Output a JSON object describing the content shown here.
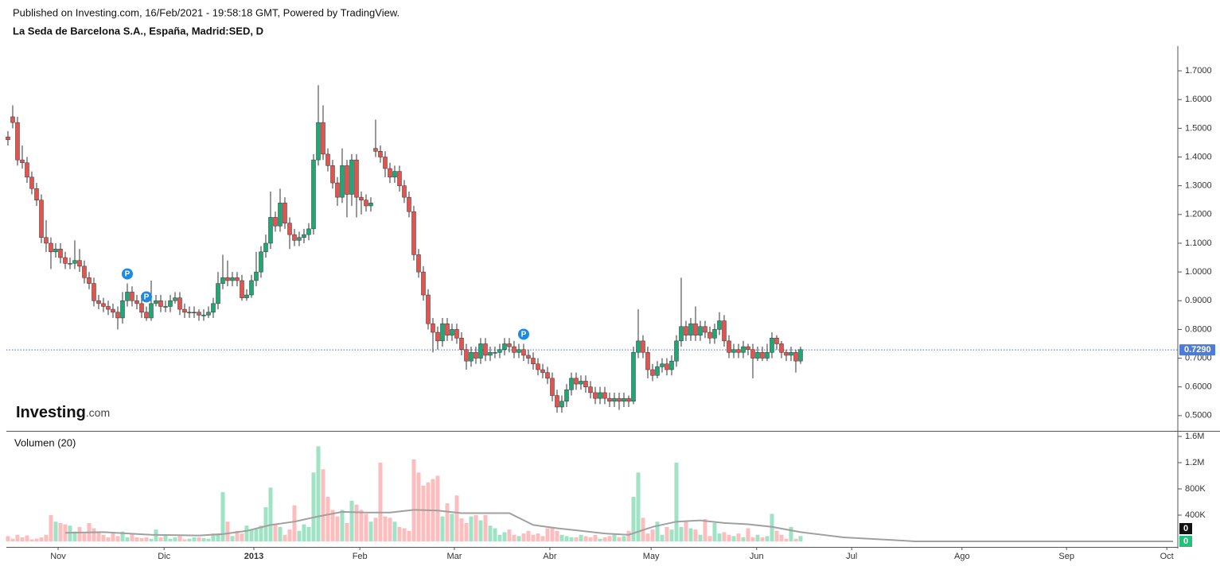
{
  "chart_data": {
    "type": "candlestick",
    "subtitle": "Published on Investing.com, 16/Feb/2021 - 19:58:18 GMT, Powered by TradingView.",
    "title": "La Seda de Barcelona S.A., España, Madrid:SED, D",
    "logo": {
      "brand": "Investing",
      "suffix": ".com"
    },
    "up_color": "#1fa774",
    "down_color": "#e5534f",
    "xlim": [
      -0.33,
      244.67
    ],
    "xticks": [
      {
        "value": 10.5,
        "label": "Nov"
      },
      {
        "value": 32.7,
        "label": "Dic"
      },
      {
        "value": 51.5,
        "label": "2013"
      },
      {
        "value": 73.7,
        "label": "Feb"
      },
      {
        "value": 93.5,
        "label": "Mar"
      },
      {
        "value": 113.5,
        "label": "Abr"
      },
      {
        "value": 134.7,
        "label": "May"
      },
      {
        "value": 156.8,
        "label": "Jun"
      },
      {
        "value": 176.7,
        "label": "Jul"
      },
      {
        "value": 199.8,
        "label": "Ago"
      },
      {
        "value": 221.7,
        "label": "Sep"
      },
      {
        "value": 242.7,
        "label": "Oct"
      }
    ],
    "ylim": [
      0.447,
      1.786
    ],
    "yticks": [
      {
        "value": 0.5,
        "label": "0.5000"
      },
      {
        "value": 0.6,
        "label": "0.6000"
      },
      {
        "value": 0.7,
        "label": "0.7000"
      },
      {
        "value": 0.8,
        "label": "0.8000"
      },
      {
        "value": 0.9,
        "label": "0.9000"
      },
      {
        "value": 1.0,
        "label": "1.0000"
      },
      {
        "value": 1.1,
        "label": "1.1000"
      },
      {
        "value": 1.2,
        "label": "1.2000"
      },
      {
        "value": 1.3,
        "label": "1.3000"
      },
      {
        "value": 1.4,
        "label": "1.4000"
      },
      {
        "value": 1.5,
        "label": "1.5000"
      },
      {
        "value": 1.6,
        "label": "1.6000"
      },
      {
        "value": 1.7,
        "label": "1.7000"
      }
    ],
    "last_price": {
      "value": 0.729,
      "label": "0.7290"
    },
    "events": [
      {
        "bar": 25,
        "label": "P"
      },
      {
        "bar": 29,
        "label": "P"
      },
      {
        "bar": 108,
        "label": "P"
      }
    ],
    "open": [
      1.47,
      1.54,
      1.52,
      1.39,
      1.38,
      1.33,
      1.29,
      1.25,
      1.12,
      1.1,
      1.07,
      1.08,
      1.05,
      1.03,
      1.03,
      1.04,
      1.02,
      0.98,
      0.96,
      0.9,
      0.89,
      0.88,
      0.87,
      0.86,
      0.84,
      0.9,
      0.93,
      0.9,
      0.89,
      0.86,
      0.84,
      0.89,
      0.9,
      0.88,
      0.88,
      0.9,
      0.91,
      0.87,
      0.86,
      0.86,
      0.86,
      0.85,
      0.85,
      0.86,
      0.89,
      0.96,
      0.98,
      0.97,
      0.98,
      0.97,
      0.91,
      0.92,
      0.97,
      1.0,
      1.07,
      1.1,
      1.19,
      1.16,
      1.24,
      1.17,
      1.13,
      1.11,
      1.12,
      1.13,
      1.15,
      1.39,
      1.52,
      1.41,
      1.37,
      1.31,
      1.26,
      1.37,
      1.27,
      1.39,
      1.26,
      1.25,
      1.23,
      1.43,
      1.42,
      1.4,
      1.36,
      1.33,
      1.35,
      1.3,
      1.26,
      1.21,
      1.06,
      1.0,
      0.92,
      0.82,
      0.79,
      0.76,
      0.82,
      0.78,
      0.8,
      0.77,
      0.73,
      0.69,
      0.72,
      0.7,
      0.75,
      0.71,
      0.72,
      0.72,
      0.73,
      0.75,
      0.74,
      0.72,
      0.73,
      0.71,
      0.7,
      0.68,
      0.66,
      0.65,
      0.63,
      0.57,
      0.53,
      0.55,
      0.59,
      0.63,
      0.61,
      0.62,
      0.6,
      0.58,
      0.56,
      0.58,
      0.56,
      0.55,
      0.56,
      0.55,
      0.56,
      0.55,
      0.72,
      0.76,
      0.72,
      0.66,
      0.64,
      0.67,
      0.68,
      0.66,
      0.69,
      0.76,
      0.81,
      0.78,
      0.82,
      0.78,
      0.81,
      0.79,
      0.77,
      0.8,
      0.83,
      0.76,
      0.72,
      0.73,
      0.72,
      0.74,
      0.73,
      0.7,
      0.72,
      0.7,
      0.72,
      0.77,
      0.75,
      0.72,
      0.71,
      0.72,
      0.69
    ],
    "high": [
      1.49,
      1.58,
      1.54,
      1.44,
      1.4,
      1.35,
      1.31,
      1.27,
      1.18,
      1.12,
      1.1,
      1.1,
      1.07,
      1.05,
      1.11,
      1.08,
      1.04,
      1.0,
      0.98,
      0.92,
      0.91,
      0.9,
      0.89,
      0.88,
      0.93,
      0.96,
      0.95,
      0.92,
      0.91,
      0.88,
      0.97,
      0.92,
      0.92,
      0.9,
      0.92,
      0.93,
      0.93,
      0.89,
      0.88,
      0.88,
      0.87,
      0.87,
      0.88,
      0.91,
      1.0,
      1.06,
      1.04,
      1.0,
      1.0,
      0.99,
      0.94,
      0.99,
      1.07,
      1.09,
      1.13,
      1.28,
      1.21,
      1.29,
      1.26,
      1.19,
      1.15,
      1.14,
      1.15,
      1.17,
      1.41,
      1.65,
      1.58,
      1.43,
      1.39,
      1.33,
      1.43,
      1.39,
      1.41,
      1.41,
      1.28,
      1.27,
      1.26,
      1.53,
      1.44,
      1.42,
      1.38,
      1.37,
      1.37,
      1.32,
      1.28,
      1.23,
      1.08,
      1.02,
      0.94,
      0.84,
      0.81,
      0.84,
      0.84,
      0.82,
      0.82,
      0.79,
      0.75,
      0.74,
      0.74,
      0.77,
      0.77,
      0.74,
      0.74,
      0.75,
      0.77,
      0.77,
      0.76,
      0.75,
      0.75,
      0.73,
      0.72,
      0.7,
      0.68,
      0.67,
      0.65,
      0.59,
      0.57,
      0.61,
      0.65,
      0.65,
      0.64,
      0.64,
      0.62,
      0.6,
      0.6,
      0.6,
      0.58,
      0.58,
      0.58,
      0.58,
      0.57,
      0.74,
      0.87,
      0.78,
      0.74,
      0.68,
      0.69,
      0.7,
      0.7,
      0.71,
      0.78,
      0.98,
      0.83,
      0.84,
      0.88,
      0.83,
      0.83,
      0.81,
      0.82,
      0.86,
      0.85,
      0.78,
      0.75,
      0.75,
      0.76,
      0.75,
      0.75,
      0.74,
      0.74,
      0.75,
      0.79,
      0.78,
      0.76,
      0.73,
      0.74,
      0.73,
      0.74
    ],
    "low": [
      1.44,
      1.5,
      1.37,
      1.36,
      1.31,
      1.27,
      1.23,
      1.1,
      1.07,
      1.01,
      1.05,
      1.03,
      1.01,
      1.01,
      1.01,
      1.0,
      0.96,
      0.94,
      0.88,
      0.87,
      0.86,
      0.85,
      0.84,
      0.8,
      0.82,
      0.88,
      0.88,
      0.87,
      0.84,
      0.83,
      0.83,
      0.88,
      0.86,
      0.86,
      0.86,
      0.89,
      0.85,
      0.84,
      0.84,
      0.84,
      0.83,
      0.83,
      0.84,
      0.84,
      0.87,
      0.94,
      0.95,
      0.95,
      0.95,
      0.9,
      0.9,
      0.91,
      0.95,
      0.98,
      1.05,
      1.08,
      1.14,
      1.14,
      1.15,
      1.08,
      1.09,
      1.09,
      1.1,
      1.11,
      1.13,
      1.37,
      1.39,
      1.35,
      1.29,
      1.23,
      1.24,
      1.19,
      1.23,
      1.19,
      1.2,
      1.21,
      1.21,
      1.4,
      1.38,
      1.33,
      1.31,
      1.31,
      1.28,
      1.24,
      1.19,
      1.04,
      0.98,
      0.9,
      0.8,
      0.72,
      0.73,
      0.74,
      0.76,
      0.76,
      0.75,
      0.71,
      0.66,
      0.67,
      0.68,
      0.68,
      0.69,
      0.69,
      0.7,
      0.7,
      0.71,
      0.72,
      0.7,
      0.7,
      0.69,
      0.68,
      0.66,
      0.64,
      0.63,
      0.61,
      0.55,
      0.51,
      0.51,
      0.53,
      0.57,
      0.59,
      0.59,
      0.58,
      0.56,
      0.54,
      0.54,
      0.54,
      0.53,
      0.53,
      0.52,
      0.53,
      0.53,
      0.54,
      0.7,
      0.7,
      0.63,
      0.62,
      0.63,
      0.65,
      0.64,
      0.64,
      0.67,
      0.74,
      0.76,
      0.76,
      0.76,
      0.76,
      0.77,
      0.75,
      0.75,
      0.78,
      0.74,
      0.7,
      0.7,
      0.7,
      0.7,
      0.71,
      0.63,
      0.69,
      0.69,
      0.69,
      0.7,
      0.73,
      0.7,
      0.69,
      0.69,
      0.65,
      0.68
    ],
    "close": [
      1.46,
      1.52,
      1.39,
      1.38,
      1.33,
      1.29,
      1.25,
      1.12,
      1.1,
      1.07,
      1.08,
      1.05,
      1.03,
      1.03,
      1.04,
      1.02,
      0.98,
      0.96,
      0.9,
      0.89,
      0.88,
      0.87,
      0.86,
      0.84,
      0.9,
      0.93,
      0.9,
      0.89,
      0.86,
      0.84,
      0.89,
      0.9,
      0.88,
      0.88,
      0.9,
      0.91,
      0.87,
      0.86,
      0.86,
      0.86,
      0.85,
      0.85,
      0.86,
      0.89,
      0.96,
      0.98,
      0.97,
      0.98,
      0.97,
      0.91,
      0.92,
      0.97,
      1.0,
      1.07,
      1.1,
      1.19,
      1.16,
      1.24,
      1.17,
      1.13,
      1.11,
      1.12,
      1.13,
      1.15,
      1.39,
      1.52,
      1.41,
      1.37,
      1.31,
      1.26,
      1.37,
      1.27,
      1.39,
      1.26,
      1.25,
      1.23,
      1.24,
      1.42,
      1.4,
      1.36,
      1.33,
      1.35,
      1.3,
      1.26,
      1.21,
      1.06,
      1.0,
      0.92,
      0.82,
      0.79,
      0.76,
      0.82,
      0.78,
      0.8,
      0.77,
      0.73,
      0.69,
      0.72,
      0.7,
      0.75,
      0.71,
      0.72,
      0.72,
      0.73,
      0.75,
      0.74,
      0.72,
      0.73,
      0.71,
      0.7,
      0.68,
      0.66,
      0.65,
      0.63,
      0.57,
      0.53,
      0.55,
      0.59,
      0.63,
      0.61,
      0.62,
      0.6,
      0.58,
      0.56,
      0.58,
      0.56,
      0.55,
      0.56,
      0.55,
      0.56,
      0.55,
      0.72,
      0.76,
      0.72,
      0.66,
      0.64,
      0.67,
      0.68,
      0.66,
      0.69,
      0.76,
      0.81,
      0.78,
      0.82,
      0.78,
      0.81,
      0.79,
      0.77,
      0.8,
      0.83,
      0.76,
      0.72,
      0.73,
      0.72,
      0.74,
      0.73,
      0.7,
      0.72,
      0.7,
      0.72,
      0.77,
      0.75,
      0.72,
      0.71,
      0.72,
      0.69,
      0.73
    ],
    "volume": {
      "label": "Volumen (20)",
      "up_color": "#9fe3c4",
      "down_color": "#fbbdbd",
      "ma_color": "#a0a0a0",
      "ylim": [
        -85000,
        1673000
      ],
      "yticks": [
        {
          "value": 400000,
          "label": "400K"
        },
        {
          "value": 800000,
          "label": "800K"
        },
        {
          "value": 1200000,
          "label": "1.2M"
        },
        {
          "value": 1600000,
          "label": "1.6M"
        }
      ],
      "values": [
        80000,
        40000,
        100000,
        60000,
        90000,
        30000,
        40000,
        60000,
        100000,
        400000,
        300000,
        280000,
        260000,
        240000,
        150000,
        220000,
        120000,
        280000,
        200000,
        140000,
        100000,
        60000,
        120000,
        80000,
        150000,
        60000,
        120000,
        60000,
        50000,
        60000,
        40000,
        180000,
        60000,
        100000,
        40000,
        60000,
        80000,
        30000,
        40000,
        60000,
        60000,
        50000,
        40000,
        120000,
        120000,
        750000,
        300000,
        80000,
        160000,
        120000,
        240000,
        180000,
        200000,
        240000,
        520000,
        820000,
        260000,
        220000,
        100000,
        180000,
        550000,
        160000,
        260000,
        220000,
        1050000,
        1450000,
        1100000,
        680000,
        480000,
        380000,
        480000,
        280000,
        620000,
        560000,
        480000,
        420000,
        300000,
        360000,
        1200000,
        380000,
        360000,
        300000,
        220000,
        200000,
        160000,
        1250000,
        1050000,
        850000,
        900000,
        950000,
        1000000,
        380000,
        580000,
        420000,
        700000,
        350000,
        280000,
        380000,
        400000,
        320000,
        400000,
        240000,
        200000,
        100000,
        140000,
        180000,
        100000,
        80000,
        120000,
        160000,
        100000,
        120000,
        80000,
        200000,
        220000,
        160000,
        100000,
        80000,
        60000,
        60000,
        100000,
        80000,
        60000,
        100000,
        40000,
        60000,
        80000,
        100000,
        60000,
        80000,
        160000,
        680000,
        1050000,
        360000,
        120000,
        180000,
        300000,
        100000,
        220000,
        180000,
        1200000,
        220000,
        300000,
        200000,
        180000,
        100000,
        340000,
        80000,
        280000,
        120000,
        140000,
        100000,
        80000,
        120000,
        60000,
        200000,
        60000,
        100000,
        60000,
        80000,
        420000,
        160000,
        100000,
        40000,
        220000,
        40000,
        80000
      ],
      "ma_x": [
        12,
        20,
        30,
        40,
        45,
        50,
        55,
        60,
        65,
        70,
        75,
        80,
        85,
        90,
        95,
        100,
        105,
        110,
        115,
        120,
        125,
        130,
        135,
        140,
        145,
        150,
        155,
        160,
        166,
        175,
        185,
        190,
        244
      ],
      "ma": [
        130000,
        140000,
        100000,
        90000,
        110000,
        160000,
        250000,
        300000,
        380000,
        450000,
        440000,
        440000,
        480000,
        470000,
        430000,
        430000,
        430000,
        250000,
        200000,
        160000,
        120000,
        100000,
        220000,
        300000,
        320000,
        280000,
        260000,
        220000,
        140000,
        60000,
        20000,
        0,
        0
      ],
      "last_volume": 0,
      "last_ma": 0
    }
  }
}
